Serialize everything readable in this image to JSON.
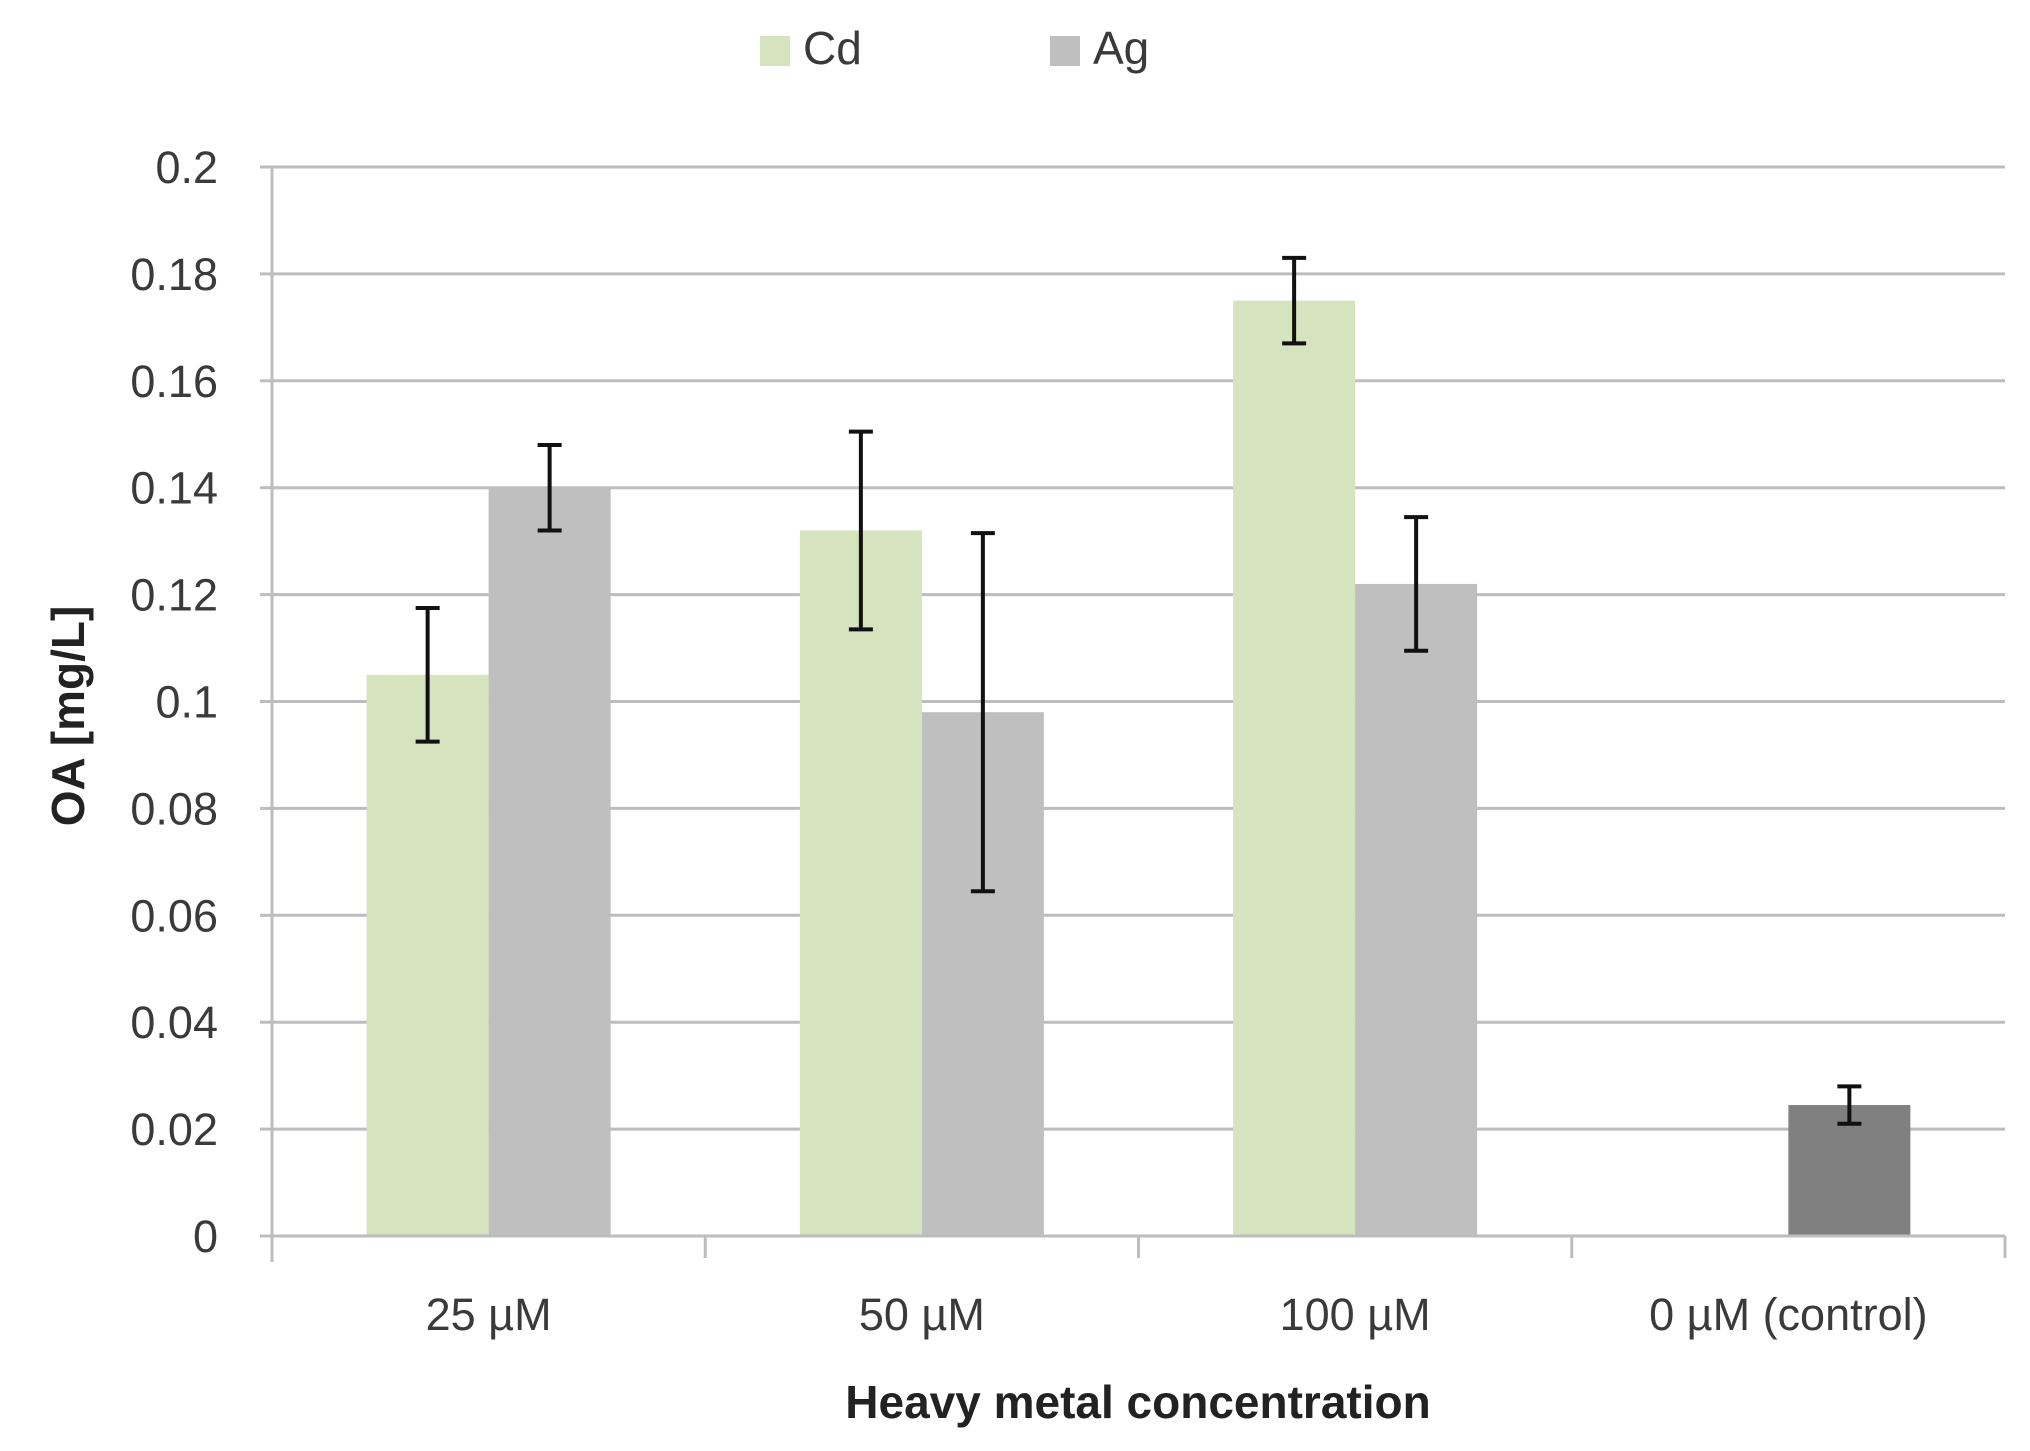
{
  "chart_data": {
    "type": "bar",
    "title": "",
    "xlabel": "Heavy metal concentration",
    "ylabel": "OA [mg/L]",
    "ylim": [
      0,
      0.2
    ],
    "yticks": [
      "0",
      "0.02",
      "0.04",
      "0.06",
      "0.08",
      "0.1",
      "0.12",
      "0.14",
      "0.16",
      "0.18",
      "0.2"
    ],
    "ytick_values": [
      0,
      0.02,
      0.04,
      0.06,
      0.08,
      0.1,
      0.12,
      0.14,
      0.16,
      0.18,
      0.2
    ],
    "categories": [
      "25 µM",
      "50 µM",
      "100 µM",
      "0 µM (control)"
    ],
    "series": [
      {
        "name": "Cd",
        "color": "#d5e4bf",
        "values": [
          0.105,
          0.132,
          0.175,
          null
        ],
        "errors": [
          0.0125,
          0.0185,
          0.008,
          null
        ]
      },
      {
        "name": "Ag",
        "color": "#bfbfbf",
        "values": [
          0.14,
          0.098,
          0.122,
          null
        ],
        "errors": [
          0.008,
          0.0335,
          0.0125,
          null
        ]
      }
    ],
    "control": {
      "category": "0 µM (control)",
      "value": 0.0245,
      "error": 0.0035,
      "color": "#808080"
    },
    "grid": true,
    "legend": "top-center"
  }
}
